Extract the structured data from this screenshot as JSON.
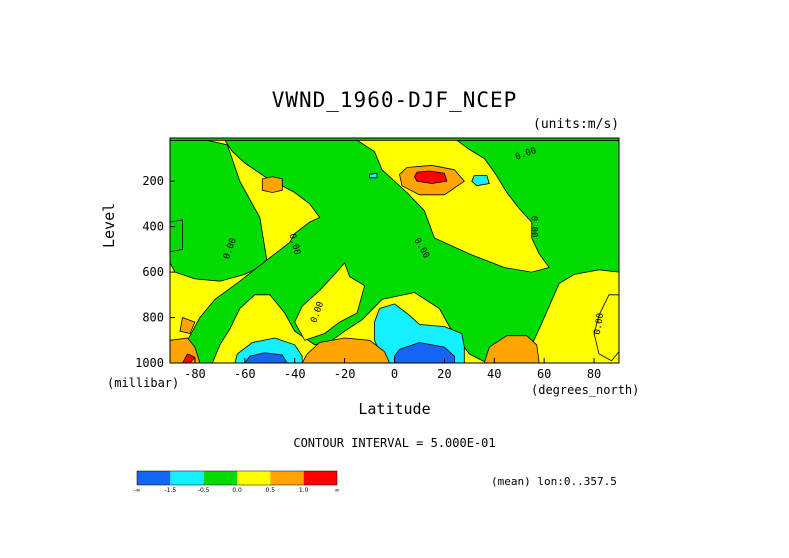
{
  "chart_data": {
    "type": "heatmap",
    "title": "VWND_1960-DJF_NCEP",
    "units_label": "(units:m/s)",
    "xlabel": "Latitude",
    "ylabel": "Level",
    "x_unit_label": "(degrees_north)",
    "y_unit_label": "(millibar)",
    "xlim": [
      -90,
      90
    ],
    "ylim": [
      1000,
      10
    ],
    "x_ticks": [
      -80,
      -60,
      -40,
      -20,
      0,
      20,
      40,
      60,
      80
    ],
    "y_ticks": [
      200,
      400,
      600,
      800,
      1000
    ],
    "contour_interval_text": "CONTOUR INTERVAL = 5.000E-01",
    "footer_text": "(mean) lon:0..357.5",
    "contour_label": "0.00",
    "colorbar": {
      "colors": [
        "#1464f5",
        "#14f0ff",
        "#00dc00",
        "#ffff00",
        "#ffa500",
        "#ff0000"
      ],
      "labels": [
        "-∞",
        "-1.5",
        "-0.5",
        "0.0",
        "0.5",
        "1.0",
        "∞"
      ]
    },
    "field_colors": {
      "negative_strong": "#1464f5",
      "negative_weak": "#14f0ff",
      "near_zero_neg": "#00dc00",
      "near_zero_pos": "#ffff00",
      "positive": "#ffa500",
      "positive_strong": "#ff0000",
      "extreme_max": "#c80000"
    },
    "regions": [
      {
        "color": "near_zero_pos",
        "lat_range": [
          -90,
          90
        ],
        "level_range": [
          10,
          1000
        ]
      },
      {
        "color": "near_zero_neg",
        "points": [
          [
            -90,
            20
          ],
          [
            -75,
            20
          ],
          [
            -67,
            40
          ],
          [
            -62,
            200
          ],
          [
            -54,
            360
          ],
          [
            -51,
            560
          ],
          [
            -60,
            610
          ],
          [
            -70,
            640
          ],
          [
            -80,
            630
          ],
          [
            -88,
            600
          ],
          [
            -90,
            560
          ]
        ]
      },
      {
        "color": "near_zero_neg",
        "points": [
          [
            -68,
            20
          ],
          [
            -15,
            20
          ],
          [
            -8,
            70
          ],
          [
            -5,
            150
          ],
          [
            5,
            250
          ],
          [
            12,
            330
          ],
          [
            16,
            450
          ],
          [
            30,
            520
          ],
          [
            44,
            580
          ],
          [
            55,
            600
          ],
          [
            62,
            580
          ],
          [
            58,
            520
          ],
          [
            55,
            450
          ],
          [
            55,
            380
          ],
          [
            50,
            320
          ],
          [
            45,
            250
          ],
          [
            40,
            160
          ],
          [
            36,
            100
          ],
          [
            30,
            60
          ],
          [
            25,
            20
          ],
          [
            90,
            20
          ],
          [
            90,
            600
          ],
          [
            82,
            590
          ],
          [
            72,
            610
          ],
          [
            66,
            650
          ],
          [
            62,
            750
          ],
          [
            58,
            850
          ],
          [
            55,
            920
          ],
          [
            52,
            1000
          ],
          [
            37,
            1000
          ],
          [
            30,
            960
          ],
          [
            22,
            840
          ],
          [
            18,
            760
          ],
          [
            8,
            690
          ],
          [
            -5,
            720
          ],
          [
            -13,
            810
          ],
          [
            -20,
            860
          ],
          [
            -25,
            900
          ],
          [
            -32,
            920
          ],
          [
            -40,
            860
          ],
          [
            -44,
            780
          ],
          [
            -50,
            700
          ],
          [
            -56,
            700
          ],
          [
            -62,
            760
          ],
          [
            -66,
            850
          ],
          [
            -70,
            920
          ],
          [
            -73,
            1000
          ],
          [
            -83,
            1000
          ],
          [
            -83,
            900
          ],
          [
            -78,
            800
          ],
          [
            -72,
            720
          ],
          [
            -62,
            640
          ],
          [
            -55,
            580
          ],
          [
            -48,
            520
          ],
          [
            -42,
            470
          ],
          [
            -40,
            430
          ],
          [
            -34,
            380
          ],
          [
            -30,
            360
          ],
          [
            -34,
            300
          ],
          [
            -40,
            250
          ],
          [
            -52,
            180
          ],
          [
            -60,
            120
          ],
          [
            -65,
            70
          ]
        ]
      },
      {
        "color": "near_zero_pos",
        "points": [
          [
            -12,
            660
          ],
          [
            -18,
            620
          ],
          [
            -20,
            560
          ],
          [
            -24,
            610
          ],
          [
            -30,
            680
          ],
          [
            -37,
            750
          ],
          [
            -40,
            820
          ],
          [
            -36,
            900
          ],
          [
            -28,
            870
          ],
          [
            -22,
            820
          ],
          [
            -15,
            780
          ]
        ]
      },
      {
        "color": "near_zero_pos",
        "points": [
          [
            86,
            700
          ],
          [
            82,
            790
          ],
          [
            80,
            870
          ],
          [
            82,
            960
          ],
          [
            87,
            990
          ],
          [
            90,
            950
          ],
          [
            90,
            700
          ]
        ]
      },
      {
        "color": "near_zero_neg",
        "points": [
          [
            -70,
            150
          ],
          [
            -65,
            170
          ]
        ]
      },
      {
        "color": "positive",
        "points": [
          [
            -49,
            180
          ],
          [
            -45,
            190
          ],
          [
            -45,
            240
          ],
          [
            -49,
            250
          ],
          [
            -53,
            240
          ],
          [
            -53,
            190
          ]
        ]
      },
      {
        "color": "positive",
        "points": [
          [
            5,
            140
          ],
          [
            15,
            130
          ],
          [
            24,
            150
          ],
          [
            28,
            200
          ],
          [
            20,
            260
          ],
          [
            10,
            260
          ],
          [
            3,
            220
          ],
          [
            2,
            170
          ]
        ]
      },
      {
        "color": "positive_strong",
        "points": [
          [
            9,
            160
          ],
          [
            14,
            155
          ],
          [
            20,
            165
          ],
          [
            21,
            200
          ],
          [
            15,
            210
          ],
          [
            9,
            200
          ],
          [
            8,
            180
          ]
        ]
      },
      {
        "color": "negative_weak",
        "points": [
          [
            32,
            175
          ],
          [
            37,
            175
          ],
          [
            38,
            210
          ],
          [
            33,
            220
          ],
          [
            31,
            200
          ]
        ]
      },
      {
        "color": "negative_weak",
        "points": [
          [
            -10,
            170
          ],
          [
            -7,
            165
          ],
          [
            -7,
            185
          ],
          [
            -10,
            185
          ]
        ]
      },
      {
        "color": "near_zero_neg",
        "points": [
          [
            -90,
            380
          ],
          [
            -85,
            370
          ],
          [
            -85,
            500
          ],
          [
            -90,
            510
          ]
        ]
      },
      {
        "color": "negative_weak",
        "points": [
          [
            -6,
            760
          ],
          [
            0,
            740
          ],
          [
            6,
            790
          ],
          [
            10,
            830
          ],
          [
            20,
            840
          ],
          [
            27,
            870
          ],
          [
            28,
            930
          ],
          [
            28,
            1000
          ],
          [
            -4,
            1000
          ],
          [
            -8,
            900
          ],
          [
            -8,
            820
          ]
        ]
      },
      {
        "color": "negative_strong",
        "points": [
          [
            2,
            940
          ],
          [
            10,
            910
          ],
          [
            20,
            930
          ],
          [
            24,
            970
          ],
          [
            24,
            1000
          ],
          [
            0,
            1000
          ],
          [
            0,
            970
          ]
        ]
      },
      {
        "color": "negative_weak",
        "points": [
          [
            -63,
            960
          ],
          [
            -57,
            910
          ],
          [
            -48,
            890
          ],
          [
            -40,
            920
          ],
          [
            -37,
            970
          ],
          [
            -37,
            1000
          ],
          [
            -64,
            1000
          ]
        ]
      },
      {
        "color": "negative_strong",
        "points": [
          [
            -58,
            970
          ],
          [
            -52,
            955
          ],
          [
            -45,
            965
          ],
          [
            -43,
            1000
          ],
          [
            -60,
            1000
          ]
        ]
      },
      {
        "color": "positive",
        "points": [
          [
            -35,
            960
          ],
          [
            -30,
            910
          ],
          [
            -20,
            890
          ],
          [
            -10,
            900
          ],
          [
            -4,
            950
          ],
          [
            -2,
            1000
          ],
          [
            -37,
            1000
          ]
        ]
      },
      {
        "color": "positive",
        "points": [
          [
            36,
            1000
          ],
          [
            38,
            930
          ],
          [
            45,
            880
          ],
          [
            53,
            880
          ],
          [
            57,
            920
          ],
          [
            58,
            1000
          ]
        ]
      },
      {
        "color": "positive",
        "points": [
          [
            -90,
            900
          ],
          [
            -83,
            890
          ],
          [
            -80,
            930
          ],
          [
            -78,
            1000
          ],
          [
            -90,
            1000
          ]
        ]
      },
      {
        "color": "positive_strong",
        "points": [
          [
            -83,
            960
          ],
          [
            -80,
            975
          ],
          [
            -82,
            1000
          ],
          [
            -85,
            1000
          ]
        ]
      },
      {
        "color": "positive",
        "points": [
          [
            -85,
            800
          ],
          [
            -80,
            820
          ],
          [
            -82,
            870
          ],
          [
            -86,
            860
          ]
        ]
      },
      {
        "color": "near_zero_neg",
        "points": [
          [
            -90,
            10
          ],
          [
            90,
            10
          ],
          [
            90,
            20
          ],
          [
            -90,
            20
          ]
        ]
      }
    ]
  }
}
